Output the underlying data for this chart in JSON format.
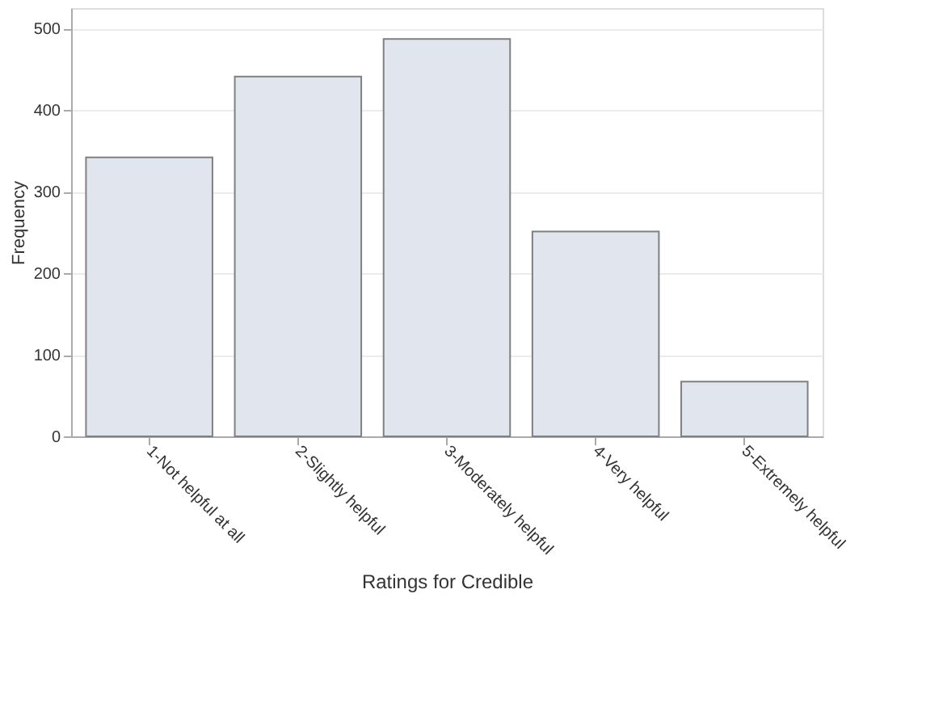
{
  "chart_data": {
    "type": "bar",
    "xlabel": "Ratings for Credible",
    "ylabel": "Frequency",
    "categories": [
      "1-Not helpful at all",
      "2-Slightly helpful",
      "3-Moderately helpful",
      "4-Very helpful",
      "5-Extremely helpful"
    ],
    "values": [
      342,
      441,
      487,
      251,
      67
    ],
    "color": "#e1e6ee",
    "ylim": [
      0,
      525
    ],
    "yticks": [
      0,
      100,
      200,
      300,
      400,
      500
    ],
    "grid": "y"
  }
}
